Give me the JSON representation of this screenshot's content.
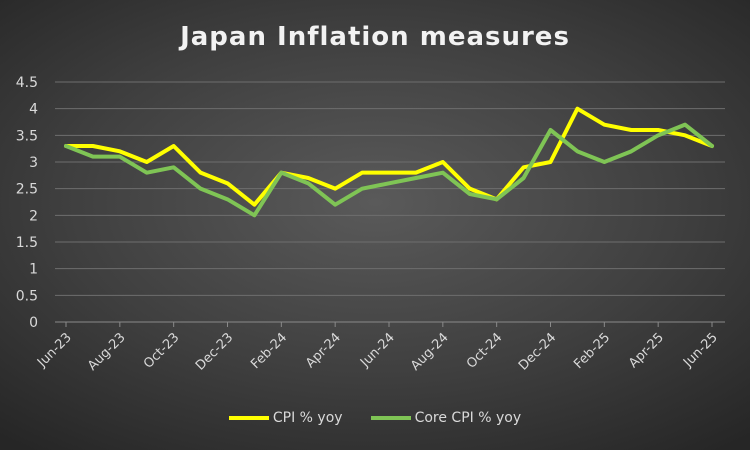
{
  "chart_data": {
    "type": "line",
    "title": "Japan Inflation measures",
    "xlabel": "",
    "ylabel": "",
    "ylim": [
      0,
      4.5
    ],
    "yticks": [
      "0",
      "0.5",
      "1",
      "1.5",
      "2",
      "2.5",
      "3",
      "3.5",
      "4",
      "4.5"
    ],
    "grid": true,
    "legend_position": "bottom",
    "x": [
      "Jun-23",
      "Jul-23",
      "Aug-23",
      "Sep-23",
      "Oct-23",
      "Nov-23",
      "Dec-23",
      "Jan-24",
      "Feb-24",
      "Mar-24",
      "Apr-24",
      "May-24",
      "Jun-24",
      "Jul-24",
      "Aug-24",
      "Sep-24",
      "Oct-24",
      "Nov-24",
      "Dec-24",
      "Jan-25",
      "Feb-25",
      "Mar-25",
      "Apr-25",
      "May-25",
      "Jun-25"
    ],
    "xtick_labels": [
      "Jun-23",
      "Aug-23",
      "Oct-23",
      "Dec-23",
      "Feb-24",
      "Apr-24",
      "Jun-24",
      "Aug-24",
      "Oct-24",
      "Dec-24",
      "Feb-25",
      "Apr-25",
      "Jun-25"
    ],
    "series": [
      {
        "name": "CPI % yoy",
        "color": "#ffff00",
        "values": [
          3.3,
          3.3,
          3.2,
          3.0,
          3.3,
          2.8,
          2.6,
          2.2,
          2.8,
          2.7,
          2.5,
          2.8,
          2.8,
          2.8,
          3.0,
          2.5,
          2.3,
          2.9,
          3.0,
          4.0,
          3.7,
          3.6,
          3.6,
          3.5,
          3.3
        ]
      },
      {
        "name": "Core CPI % yoy",
        "color": "#7fc455",
        "values": [
          3.3,
          3.1,
          3.1,
          2.8,
          2.9,
          2.5,
          2.3,
          2.0,
          2.8,
          2.6,
          2.2,
          2.5,
          2.6,
          2.7,
          2.8,
          2.4,
          2.3,
          2.7,
          3.6,
          3.2,
          3.0,
          3.2,
          3.5,
          3.7,
          3.3
        ]
      }
    ]
  }
}
